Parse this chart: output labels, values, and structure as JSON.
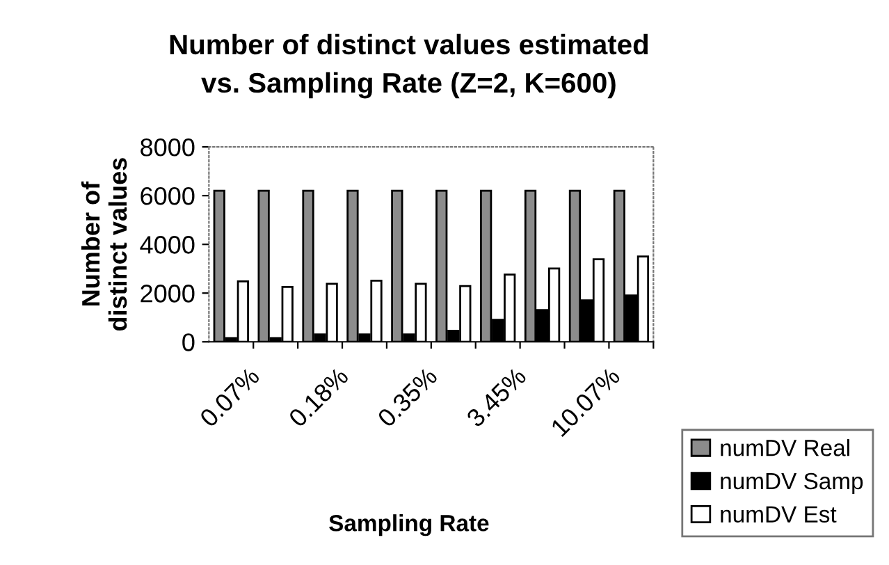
{
  "chart_data": {
    "type": "bar",
    "title": "Number of distinct values estimated\nvs. Sampling Rate (Z=2, K=600)",
    "xlabel": "Sampling Rate",
    "ylabel": "Number of\ndistinct values",
    "categories": [
      "0.07%",
      null,
      "0.18%",
      null,
      "0.35%",
      null,
      "3.45%",
      null,
      "10.07%",
      null
    ],
    "series": [
      {
        "name": "numDV Real",
        "color": "#8c8c8c",
        "values": [
          6200,
          6200,
          6200,
          6200,
          6200,
          6200,
          6200,
          6200,
          6200,
          6200
        ]
      },
      {
        "name": "numDV Samp",
        "color": "#000000",
        "values": [
          150,
          150,
          300,
          300,
          300,
          450,
          900,
          1300,
          1700,
          1900
        ]
      },
      {
        "name": "numDV Est",
        "color": "#ffffff",
        "values": [
          2480,
          2250,
          2380,
          2510,
          2380,
          2290,
          2760,
          3010,
          3390,
          3500
        ]
      }
    ],
    "ylim": [
      0,
      8000
    ],
    "yticks": [
      0,
      2000,
      4000,
      6000,
      8000
    ],
    "grid": false,
    "legend": "bottom right"
  }
}
